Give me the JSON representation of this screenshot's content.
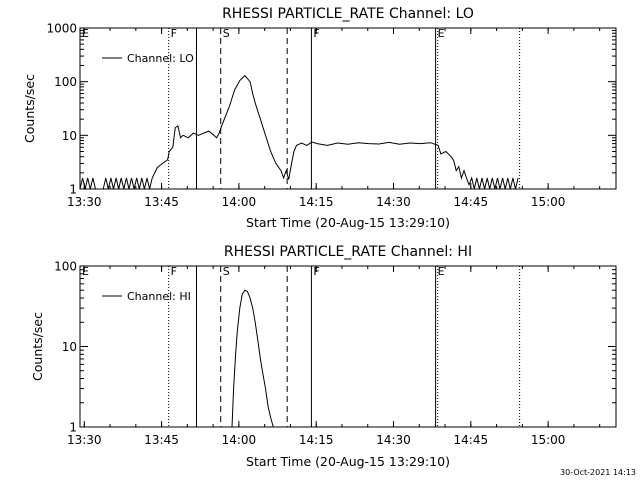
{
  "footer": {
    "timestamp": "30-Oct-2021 14:13"
  },
  "chart_data": [
    {
      "type": "line",
      "title": "RHESSI PARTICLE_RATE Channel: LO",
      "xlabel": "Start Time (20-Aug-15 13:29:10)",
      "ylabel": "Counts/sec",
      "x_unit": "minutes since 13:29:10",
      "xlim": [
        0,
        104
      ],
      "ylim": [
        1,
        1000
      ],
      "yscale": "log",
      "x_ticks": [
        {
          "v": 0.83,
          "label": "13:30"
        },
        {
          "v": 15.83,
          "label": "13:45"
        },
        {
          "v": 30.83,
          "label": "14:00"
        },
        {
          "v": 45.83,
          "label": "14:15"
        },
        {
          "v": 60.83,
          "label": "14:30"
        },
        {
          "v": 75.83,
          "label": "14:45"
        },
        {
          "v": 90.83,
          "label": "15:00"
        }
      ],
      "y_ticks": [
        {
          "v": 1,
          "label": "1"
        },
        {
          "v": 10,
          "label": "10"
        },
        {
          "v": 100,
          "label": "100"
        },
        {
          "v": 1000,
          "label": "1000"
        }
      ],
      "legend": {
        "label": "Channel: LO",
        "placement": "top-left"
      },
      "markers": [
        {
          "x": 0,
          "label": "E",
          "style": "dotted"
        },
        {
          "x": 17.2,
          "label": "F",
          "style": "dotted"
        },
        {
          "x": 22.6,
          "label": "",
          "style": "solid"
        },
        {
          "x": 27.3,
          "label": "S",
          "style": "dashed"
        },
        {
          "x": 40.2,
          "label": "",
          "style": "dashed"
        },
        {
          "x": 44.9,
          "label": "F",
          "style": "solid"
        },
        {
          "x": 69.0,
          "label": "E",
          "style": "solid"
        },
        {
          "x": 69.4,
          "label": "",
          "style": "dotted"
        },
        {
          "x": 85.3,
          "label": "",
          "style": "dotted"
        }
      ],
      "series": [
        {
          "name": "Channel: LO",
          "x": [
            0,
            0.5,
            1,
            1.5,
            2,
            2.5,
            3,
            3.5,
            4,
            4.5,
            5,
            5.5,
            6,
            6.5,
            7,
            7.5,
            8,
            8.5,
            9,
            9.5,
            10,
            10.5,
            11,
            11.5,
            12,
            12.5,
            13,
            13.5,
            14,
            15,
            16,
            17,
            17.3,
            18,
            18.5,
            19,
            19.5,
            20,
            21,
            22,
            23,
            24,
            25,
            26,
            26.5,
            27,
            27.5,
            28,
            29,
            30,
            31,
            32,
            33,
            33.5,
            34,
            35,
            36,
            37,
            38,
            39,
            39.5,
            40,
            40.5,
            41,
            41.5,
            42,
            43,
            44,
            45,
            46,
            48,
            50,
            52,
            54,
            56,
            58,
            60,
            62,
            64,
            66,
            68,
            69.5,
            70,
            71,
            72,
            72.5,
            73,
            73.5,
            74,
            74.5,
            75,
            75.5,
            76,
            76.5,
            77,
            77.5,
            78,
            78.5,
            79,
            79.5,
            80,
            80.5,
            81,
            81.5,
            82,
            82.5,
            83,
            83.5,
            84,
            84.5,
            85
          ],
          "y": [
            1,
            1.6,
            1,
            1.6,
            1,
            1.6,
            1,
            1,
            1,
            1,
            1.6,
            1,
            1.6,
            1,
            1.6,
            1,
            1.6,
            1,
            1.6,
            1,
            1.6,
            1,
            1.6,
            1,
            1.6,
            1,
            1.6,
            1,
            1.6,
            2.5,
            3,
            3.5,
            5,
            6,
            14,
            15,
            9,
            10,
            9,
            11,
            10,
            11,
            12,
            10,
            9,
            11,
            15,
            20,
            35,
            70,
            105,
            130,
            100,
            60,
            40,
            20,
            10,
            5,
            3,
            2.2,
            1.6,
            2.2,
            1.5,
            2.8,
            5,
            6.5,
            7.2,
            6.5,
            7.5,
            7,
            6.5,
            7.2,
            6.8,
            7.3,
            7,
            6.9,
            7.4,
            6.8,
            7.2,
            7,
            7.3,
            6.5,
            4.5,
            5,
            4,
            3.4,
            2.2,
            2.6,
            1.6,
            2.2,
            1.6,
            1.2,
            1.6,
            1,
            1.6,
            1,
            1.6,
            1,
            1.6,
            1,
            1.6,
            1,
            1.6,
            1,
            1.6,
            1,
            1.6,
            1,
            1.6,
            1,
            1.6
          ]
        }
      ]
    },
    {
      "type": "line",
      "title": "RHESSI PARTICLE_RATE Channel: HI",
      "xlabel": "Start Time (20-Aug-15 13:29:10)",
      "ylabel": "Counts/sec",
      "x_unit": "minutes since 13:29:10",
      "xlim": [
        0,
        104
      ],
      "ylim": [
        1,
        100
      ],
      "yscale": "log",
      "x_ticks": [
        {
          "v": 0.83,
          "label": "13:30"
        },
        {
          "v": 15.83,
          "label": "13:45"
        },
        {
          "v": 30.83,
          "label": "14:00"
        },
        {
          "v": 45.83,
          "label": "14:15"
        },
        {
          "v": 60.83,
          "label": "14:30"
        },
        {
          "v": 75.83,
          "label": "14:45"
        },
        {
          "v": 90.83,
          "label": "15:00"
        }
      ],
      "y_ticks": [
        {
          "v": 1,
          "label": "1"
        },
        {
          "v": 10,
          "label": "10"
        },
        {
          "v": 100,
          "label": "100"
        }
      ],
      "legend": {
        "label": "Channel: HI",
        "placement": "top-left"
      },
      "markers": [
        {
          "x": 0,
          "label": "E",
          "style": "dotted"
        },
        {
          "x": 17.2,
          "label": "F",
          "style": "dotted"
        },
        {
          "x": 22.6,
          "label": "",
          "style": "solid"
        },
        {
          "x": 27.3,
          "label": "S",
          "style": "dashed"
        },
        {
          "x": 40.2,
          "label": "",
          "style": "dashed"
        },
        {
          "x": 44.9,
          "label": "F",
          "style": "solid"
        },
        {
          "x": 69.0,
          "label": "E",
          "style": "solid"
        },
        {
          "x": 69.4,
          "label": "",
          "style": "dotted"
        },
        {
          "x": 85.3,
          "label": "",
          "style": "dotted"
        }
      ],
      "series": [
        {
          "name": "Channel: HI",
          "x": [
            29.5,
            29.8,
            30.2,
            30.5,
            31,
            31.5,
            32,
            32.5,
            33,
            33.5,
            34,
            34.5,
            35,
            35.5,
            36,
            36.5,
            37,
            37.5
          ],
          "y": [
            1,
            3,
            8,
            15,
            30,
            45,
            50,
            48,
            40,
            30,
            20,
            12,
            7,
            4.5,
            3,
            1.8,
            1.3,
            1
          ]
        }
      ]
    }
  ]
}
